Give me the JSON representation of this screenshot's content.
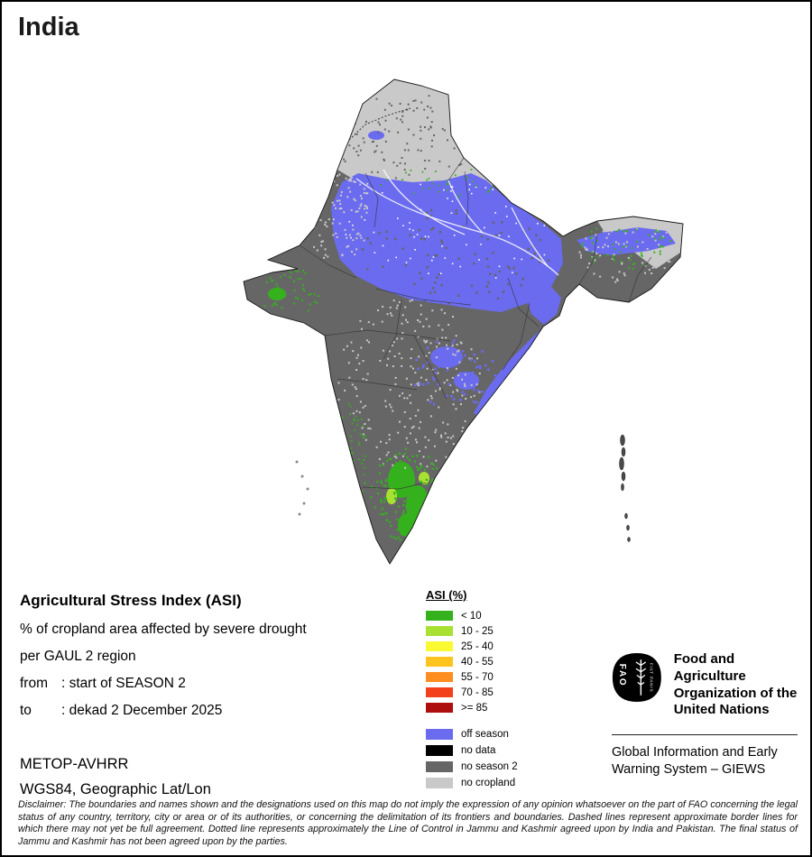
{
  "page": {
    "title": "India"
  },
  "map": {
    "name": "India Agricultural Stress Index choropleth map",
    "colors": {
      "off_season": "#6B6BEF",
      "no_data": "#000000",
      "no_season_2": "#666666",
      "no_cropland": "#C9C9C9",
      "asi_low": "#36B11E",
      "asi_mid_low": "#A9E132"
    }
  },
  "info_block": {
    "heading": "Agricultural Stress Index (ASI)",
    "description_line1": "% of cropland area affected by severe drought",
    "description_line2": "per GAUL 2 region",
    "from_label": "from",
    "from_value": ": start of SEASON 2",
    "to_label": "to",
    "to_value": ": dekad 2 December 2025",
    "sensor": "METOP-AVHRR",
    "projection": "WGS84, Geographic Lat/Lon"
  },
  "legend": {
    "title": "ASI (%)",
    "classes": [
      {
        "label": "< 10",
        "color": "#36B11E"
      },
      {
        "label": "10 - 25",
        "color": "#A9E132"
      },
      {
        "label": "25 - 40",
        "color": "#FAFA32"
      },
      {
        "label": "40 - 55",
        "color": "#FFC31F"
      },
      {
        "label": "55 - 70",
        "color": "#FF8D1F"
      },
      {
        "label": "70 - 85",
        "color": "#F2411B"
      },
      {
        "label": ">= 85",
        "color": "#AE0E0E"
      }
    ],
    "categories": [
      {
        "label": "off season",
        "color": "#6B6BEF"
      },
      {
        "label": "no data",
        "color": "#000000"
      },
      {
        "label": "no season 2",
        "color": "#666666"
      },
      {
        "label": "no cropland",
        "color": "#C9C9C9"
      }
    ]
  },
  "branding": {
    "logo_acronym": "FAO",
    "logo_motto": "FIAT PANIS",
    "org_name": "Food and Agriculture Organization of the United Nations",
    "program_name": "Global Information and Early Warning System – GIEWS"
  },
  "disclaimer": "Disclaimer: The boundaries and names shown and the designations used on this map do not imply the expression of any opinion whatsoever on the part of FAO concerning the legal status of any country, territory, city or area or of its authorities, or concerning the delimitation of its frontiers and boundaries. Dashed lines represent approximate border lines for which there may not yet be full agreement. Dotted line represents approximately the Line of Control in Jammu and Kashmir agreed upon by India and Pakistan. The final status of Jammu and Kashmir has not been agreed upon by the parties."
}
